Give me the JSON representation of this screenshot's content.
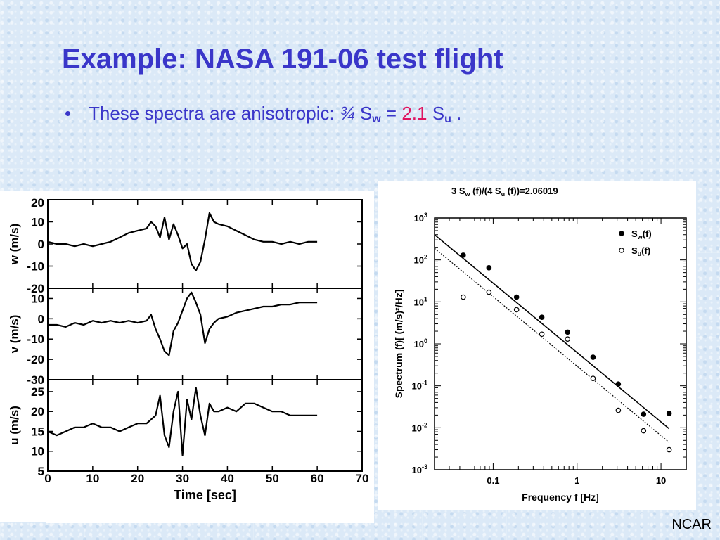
{
  "slide": {
    "title": "Example: NASA 191-06 test flight",
    "bullet": {
      "marker": "•",
      "text": "These spectra are anisotropic:",
      "ratio": "¾",
      "sym_s": "S",
      "sub_w": "w",
      "equals": "=",
      "factor": "2.1",
      "sub_u": "u",
      "period": "."
    },
    "footer": "NCAR"
  },
  "colors": {
    "title": "#3a36c9",
    "factor": "#e0145f",
    "background": "#dbe9f7"
  },
  "chart_data": [
    {
      "type": "line",
      "title": "",
      "xlabel": "Time [sec]",
      "xlim": [
        0,
        70
      ],
      "xticks": [
        "0",
        "10",
        "20",
        "30",
        "40",
        "50",
        "60",
        "70"
      ],
      "panels": [
        {
          "ylabel": "w (m/s)",
          "ylim": [
            -20,
            20
          ],
          "yticks": [
            "20",
            "10",
            "0",
            "-10",
            "-20"
          ],
          "series": [
            {
              "x": [
                0,
                2,
                4,
                6,
                8,
                10,
                12,
                14,
                16,
                18,
                20,
                22,
                23,
                24,
                25,
                26,
                27,
                28,
                29,
                30,
                31,
                32,
                33,
                34,
                35,
                36,
                37,
                38,
                40,
                42,
                44,
                46,
                48,
                50,
                52,
                54,
                56,
                58,
                60
              ],
              "y": [
                1,
                0,
                0,
                -1,
                0,
                -1,
                0,
                1,
                3,
                5,
                6,
                7,
                10,
                8,
                3,
                12,
                2,
                9,
                4,
                -2,
                0,
                -9,
                -12,
                -8,
                2,
                14,
                10,
                9,
                8,
                6,
                4,
                2,
                1,
                1,
                0,
                1,
                0,
                1,
                1
              ]
            }
          ]
        },
        {
          "ylabel": "v (m/s)",
          "ylim": [
            -30,
            15
          ],
          "yticks": [
            "10",
            "0",
            "-10",
            "-20",
            "-30"
          ],
          "series": [
            {
              "x": [
                0,
                2,
                4,
                6,
                8,
                10,
                12,
                14,
                16,
                18,
                20,
                22,
                23,
                24,
                25,
                26,
                27,
                28,
                29,
                30,
                31,
                32,
                33,
                34,
                35,
                36,
                37,
                38,
                40,
                42,
                44,
                46,
                48,
                50,
                52,
                54,
                56,
                58,
                60
              ],
              "y": [
                -3,
                -3,
                -4,
                -2,
                -3,
                -1,
                -2,
                -1,
                -2,
                -1,
                -2,
                -1,
                2,
                -5,
                -10,
                -16,
                -18,
                -6,
                -2,
                4,
                10,
                13,
                8,
                2,
                -12,
                -5,
                -2,
                0,
                1,
                3,
                4,
                5,
                6,
                6,
                7,
                7,
                8,
                8,
                8
              ]
            }
          ]
        },
        {
          "ylabel": "u (m/s)",
          "ylim": [
            5,
            28
          ],
          "yticks": [
            "25",
            "20",
            "15",
            "10",
            "5"
          ],
          "series": [
            {
              "x": [
                0,
                2,
                4,
                6,
                8,
                10,
                12,
                14,
                16,
                18,
                20,
                22,
                24,
                25,
                26,
                27,
                28,
                29,
                30,
                31,
                32,
                33,
                34,
                35,
                36,
                37,
                38,
                40,
                42,
                44,
                46,
                48,
                50,
                52,
                54,
                56,
                58,
                60
              ],
              "y": [
                15,
                14,
                15,
                16,
                16,
                17,
                16,
                16,
                15,
                16,
                17,
                17,
                19,
                24,
                14,
                11,
                20,
                25,
                9,
                23,
                18,
                26,
                19,
                14,
                22,
                20,
                20,
                21,
                20,
                22,
                22,
                21,
                20,
                20,
                19,
                19,
                19,
                19
              ]
            }
          ]
        }
      ]
    },
    {
      "type": "scatter",
      "title": "3 S_w (f)/(4 S_u (f))=2.06019",
      "title_parts": {
        "pre": "3 S",
        "sub1": "w",
        "mid": " (f)/(4 S",
        "sub2": "u",
        "post": " (f))=2.06019"
      },
      "xlabel": "Frequency f [Hz]",
      "ylabel": "Spectrum (f)[ (m/s)²/Hz]",
      "xscale": "log",
      "yscale": "log",
      "xlim": [
        0.02,
        20
      ],
      "ylim": [
        0.001,
        1000
      ],
      "xticks": [
        "0.1",
        "1",
        "10"
      ],
      "yticks": [
        {
          "base": "10",
          "exp": "3"
        },
        {
          "base": "10",
          "exp": "2"
        },
        {
          "base": "10",
          "exp": "1"
        },
        {
          "base": "10",
          "exp": "0"
        },
        {
          "base": "10",
          "exp": "-1"
        },
        {
          "base": "10",
          "exp": "-2"
        },
        {
          "base": "10",
          "exp": "-3"
        }
      ],
      "legend": "top-right",
      "series": [
        {
          "name": "S_w(f)",
          "label_main": "S",
          "label_sub": "w",
          "label_tail": "(f)",
          "marker": "filled",
          "x": [
            0.044,
            0.089,
            0.19,
            0.38,
            0.77,
            1.55,
            3.1,
            6.2,
            12.5
          ],
          "y": [
            130,
            65,
            13,
            4.3,
            1.9,
            0.48,
            0.11,
            0.021,
            0.022
          ]
        },
        {
          "name": "S_u(f)",
          "label_main": "S",
          "label_sub": "u",
          "label_tail": "(f)",
          "marker": "open",
          "x": [
            0.044,
            0.089,
            0.19,
            0.38,
            0.77,
            1.55,
            3.1,
            6.2,
            12.5
          ],
          "y": [
            13,
            17,
            6.5,
            1.7,
            1.3,
            0.15,
            0.026,
            0.0085,
            0.003
          ]
        }
      ],
      "fit_lines": [
        {
          "series": "S_w(f)",
          "style": "solid",
          "x": [
            0.02,
            12.5
          ],
          "y": [
            400,
            0.0095
          ]
        },
        {
          "series": "S_u(f)",
          "style": "dotted",
          "x": [
            0.02,
            12.5
          ],
          "y": [
            190,
            0.0045
          ]
        }
      ]
    }
  ]
}
